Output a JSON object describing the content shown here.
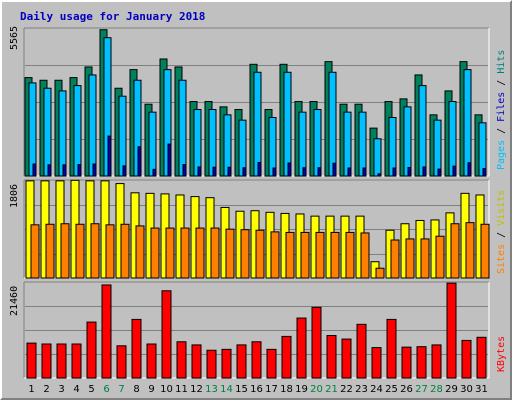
{
  "chart_data": [
    {
      "type": "bar",
      "title": "Daily usage for January 2018",
      "panel": "hits-files-pages",
      "ymax_label": "5565",
      "ylim": [
        0,
        5565
      ],
      "right_label": {
        "pages": "Pages",
        "files": "Files",
        "hits": "Hits",
        "sep": " / "
      },
      "categories": [
        "1",
        "2",
        "3",
        "4",
        "5",
        "6",
        "7",
        "8",
        "9",
        "10",
        "11",
        "12",
        "13",
        "14",
        "15",
        "16",
        "17",
        "18",
        "19",
        "20",
        "21",
        "22",
        "23",
        "24",
        "25",
        "26",
        "27",
        "28",
        "29",
        "30",
        "31"
      ],
      "weekend_days": [
        "6",
        "7",
        "13",
        "14",
        "20",
        "21",
        "27",
        "28"
      ],
      "series": [
        {
          "name": "Hits",
          "color": "#00805c",
          "values": [
            3700,
            3600,
            3600,
            3700,
            4100,
            5500,
            3300,
            4000,
            2700,
            4400,
            4100,
            2800,
            2800,
            2600,
            2500,
            4200,
            2500,
            4200,
            2800,
            2800,
            4300,
            2700,
            2700,
            1800,
            2800,
            2900,
            3800,
            2300,
            3200,
            4300,
            2300
          ]
        },
        {
          "name": "Files",
          "color": "#00c0ff",
          "values": [
            3500,
            3300,
            3200,
            3400,
            3800,
            5200,
            3000,
            3600,
            2400,
            4000,
            3600,
            2500,
            2500,
            2300,
            2100,
            3900,
            2200,
            3900,
            2400,
            2500,
            3900,
            2400,
            2400,
            1400,
            2200,
            2600,
            3400,
            2100,
            2800,
            4000,
            2000
          ]
        },
        {
          "name": "Pages",
          "color": "#0000c0",
          "values": [
            450,
            420,
            420,
            430,
            450,
            1500,
            380,
            1100,
            250,
            1200,
            430,
            340,
            330,
            330,
            310,
            510,
            300,
            490,
            310,
            310,
            480,
            300,
            300,
            80,
            300,
            320,
            340,
            260,
            370,
            500,
            280
          ]
        }
      ]
    },
    {
      "type": "bar",
      "panel": "visits-sites",
      "ymax_label": "1806",
      "ylim": [
        0,
        1806
      ],
      "right_label": {
        "sites": "Sites",
        "visits": "Visits",
        "sep": " / "
      },
      "series": [
        {
          "name": "Visits",
          "color": "#ffff00",
          "values": [
            1790,
            1790,
            1790,
            1800,
            1790,
            1790,
            1740,
            1570,
            1560,
            1550,
            1530,
            1500,
            1480,
            1300,
            1230,
            1240,
            1210,
            1190,
            1180,
            1140,
            1140,
            1140,
            1140,
            300,
            880,
            1000,
            1060,
            1070,
            1200,
            1560,
            1530
          ]
        },
        {
          "name": "Sites",
          "color": "#ff8000",
          "values": [
            980,
            990,
            1000,
            990,
            1000,
            980,
            990,
            960,
            920,
            920,
            920,
            920,
            920,
            900,
            890,
            880,
            850,
            840,
            840,
            840,
            840,
            840,
            830,
            180,
            700,
            720,
            720,
            770,
            1000,
            1020,
            990
          ]
        }
      ]
    },
    {
      "type": "bar",
      "panel": "kbytes",
      "ymax_label": "21460",
      "ylim": [
        0,
        21460
      ],
      "right_label": {
        "kbytes": "KBytes"
      },
      "series": [
        {
          "name": "KBytes",
          "color": "#ff0000",
          "values": [
            7800,
            7600,
            7600,
            7600,
            12500,
            20800,
            7200,
            13100,
            7600,
            19500,
            8100,
            7400,
            6200,
            6400,
            7400,
            8100,
            6400,
            9300,
            13400,
            15800,
            9500,
            8700,
            12000,
            6800,
            13100,
            6900,
            7000,
            7400,
            21200,
            8400,
            9100
          ]
        }
      ]
    }
  ]
}
